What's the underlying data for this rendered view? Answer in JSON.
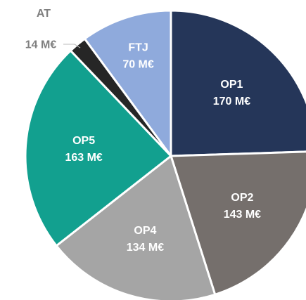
{
  "chart_data": {
    "type": "pie",
    "categories": [
      "OP1",
      "OP2",
      "OP4",
      "OP5",
      "AT",
      "FTJ"
    ],
    "values": [
      170,
      143,
      134,
      163,
      14,
      70
    ],
    "value_labels": [
      "170 M€",
      "143 M€",
      "134 M€",
      "163 M€",
      "14 M€",
      "70 M€"
    ],
    "colors": [
      "#253659",
      "#756f6c",
      "#a5a5a5",
      "#12a08f",
      "#262626",
      "#8faadc"
    ]
  }
}
